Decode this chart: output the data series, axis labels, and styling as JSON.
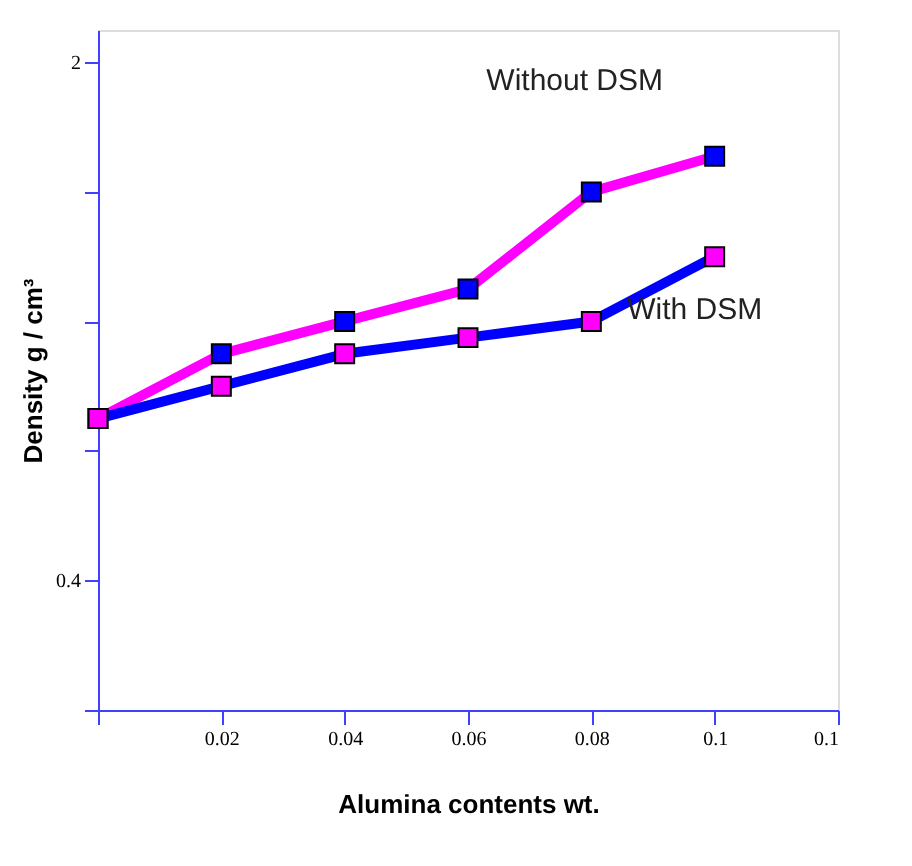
{
  "chart_data": {
    "type": "line",
    "xlabel": "Alumina contents wt.",
    "ylabel": "Density g / cm³",
    "x": [
      0,
      0.02,
      0.04,
      0.06,
      0.08,
      0.1
    ],
    "series": [
      {
        "name": "Without DSM",
        "color": "#ff00ff",
        "values": [
          0.9,
          1.1,
          1.2,
          1.3,
          1.6,
          1.71
        ]
      },
      {
        "name": "With DSM",
        "color": "#0000ff",
        "values": [
          0.9,
          1.0,
          1.1,
          1.15,
          1.2,
          1.4
        ]
      }
    ],
    "xlim": [
      0,
      0.12
    ],
    "xticks": [
      {
        "value": 0,
        "label": null
      },
      0.02,
      0.04,
      0.06,
      0.08,
      0.1,
      {
        "value": 0.12,
        "label": "0.1"
      }
    ],
    "ylim": [
      0,
      2.1
    ],
    "yticks": [
      {
        "value": 0,
        "label": null
      },
      0.4,
      {
        "value": 0.8,
        "label": null
      },
      {
        "value": 1.2,
        "label": null
      },
      {
        "value": 1.6,
        "label": null
      },
      2
    ],
    "grid": false,
    "legend": false,
    "marker": "square",
    "line_style": "solid"
  }
}
